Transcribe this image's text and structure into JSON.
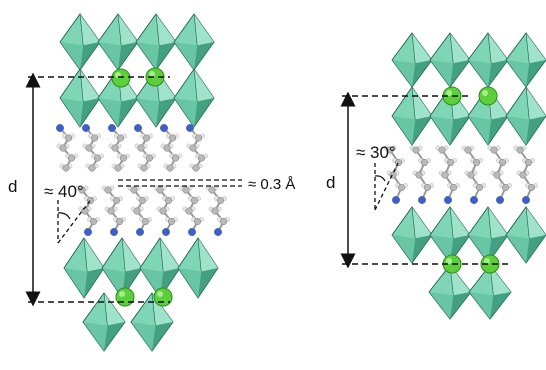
{
  "panel_left": {
    "spacing_label": "d",
    "tilt_label": "≈ 40°",
    "offset_label": "≈ 0.3 Å"
  },
  "panel_right": {
    "spacing_label": "d",
    "tilt_label": "≈ 30°"
  },
  "colors": {
    "octahedron_face": "#7fd6b6",
    "octahedron_dark": "#2f8f70",
    "octahedron_edge": "#1d5e49",
    "carbon": "#b9b9b9",
    "hydrogen": "#e6e6e6",
    "nitrogen": "#3a5fd0",
    "metal_atom": "#5ccf3a",
    "dashed_line": "#111111"
  }
}
